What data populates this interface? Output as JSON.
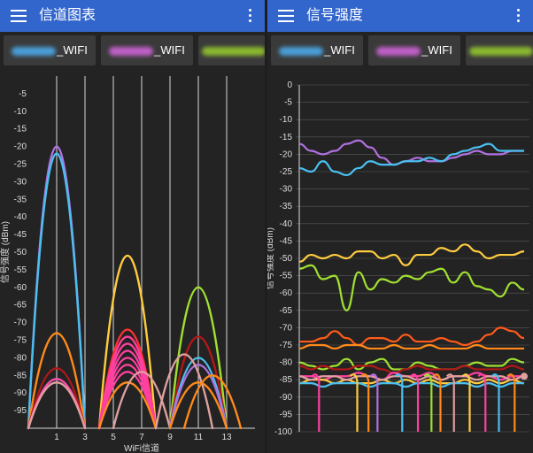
{
  "left": {
    "title": "信道图表",
    "tabs": [
      {
        "label": "_WIFI",
        "blur_color": "#4a9fd8"
      },
      {
        "label": "_WIFI",
        "blur_color": "#c060c8"
      },
      {
        "label": "",
        "blur_color": "#8ab830"
      }
    ]
  },
  "right": {
    "title": "信号强度",
    "tabs": [
      {
        "label": "_WIFI",
        "blur_color": "#4a9fd8"
      },
      {
        "label": "_WIFI",
        "blur_color": "#c060c8"
      },
      {
        "label": "",
        "blur_color": "#8ab830"
      }
    ]
  },
  "chart_data": [
    {
      "type": "area",
      "subtype": "channel-arcs",
      "xlabel": "WiFi信道",
      "ylabel": "信号强度 (dBm)",
      "ylim": [
        -100,
        0
      ],
      "xlim": [
        -1,
        15
      ],
      "yticks": [
        -5,
        -10,
        -15,
        -20,
        -25,
        -30,
        -35,
        -40,
        -45,
        -50,
        -55,
        -60,
        -65,
        -70,
        -75,
        -80,
        -85,
        -90,
        -95
      ],
      "xticks": [
        1,
        3,
        5,
        7,
        9,
        11,
        13
      ],
      "grid": true,
      "series": [
        {
          "channel": 1,
          "dbm": -20,
          "color": "#b070e0"
        },
        {
          "channel": 1,
          "dbm": -22,
          "color": "#4ac0f0"
        },
        {
          "channel": 1,
          "dbm": -73,
          "color": "#ff8a1a"
        },
        {
          "channel": 1,
          "dbm": -83,
          "color": "#b01818"
        },
        {
          "channel": 1,
          "dbm": -86,
          "color": "#ff50b0"
        },
        {
          "channel": 1,
          "dbm": -87,
          "color": "#e0a0a0"
        },
        {
          "channel": 6,
          "dbm": -51,
          "color": "#ffcc40"
        },
        {
          "channel": 6,
          "dbm": -72,
          "color": "#ff3030"
        },
        {
          "channel": 6,
          "dbm": -74,
          "color": "#ff40a0"
        },
        {
          "channel": 6,
          "dbm": -76,
          "color": "#ff40a0"
        },
        {
          "channel": 6,
          "dbm": -78,
          "color": "#ff40a0"
        },
        {
          "channel": 6,
          "dbm": -80,
          "color": "#ff40a0"
        },
        {
          "channel": 6,
          "dbm": -82,
          "color": "#ff40a0"
        },
        {
          "channel": 6,
          "dbm": -84,
          "color": "#ff40a0"
        },
        {
          "channel": 6,
          "dbm": -87,
          "color": "#ff8a1a"
        },
        {
          "channel": 7,
          "dbm": -84,
          "color": "#e0a0a0"
        },
        {
          "channel": 11,
          "dbm": -60,
          "color": "#a0e030"
        },
        {
          "channel": 11,
          "dbm": -74,
          "color": "#b01818"
        },
        {
          "channel": 11,
          "dbm": -80,
          "color": "#4ac0f0"
        },
        {
          "channel": 11,
          "dbm": -82,
          "color": "#b070e0"
        },
        {
          "channel": 11,
          "dbm": -87,
          "color": "#ff8a1a"
        },
        {
          "channel": 10,
          "dbm": -79,
          "color": "#e0a0a0"
        },
        {
          "channel": 12,
          "dbm": -85,
          "color": "#ff8a1a"
        }
      ]
    },
    {
      "type": "line",
      "ylabel": "信号强度 (dBm)",
      "ylim": [
        -100,
        0
      ],
      "yticks": [
        0,
        -5,
        -10,
        -15,
        -20,
        -25,
        -30,
        -35,
        -40,
        -45,
        -50,
        -55,
        -60,
        -65,
        -70,
        -75,
        -80,
        -85,
        -90,
        -95,
        -100
      ],
      "grid": true,
      "series": [
        {
          "color": "#b070e0",
          "values": [
            -17,
            -19,
            -20,
            -19,
            -17,
            -16,
            -18,
            -21,
            -23,
            -22,
            -21,
            -22,
            -22,
            -21,
            -20,
            -19,
            -20,
            -20,
            -19,
            -19
          ]
        },
        {
          "color": "#4ac0f0",
          "values": [
            -24,
            -25,
            -22,
            -25,
            -26,
            -24,
            -22,
            -23,
            -23,
            -22,
            -22,
            -21,
            -22,
            -20,
            -19,
            -18,
            -17,
            -19,
            -19,
            -19
          ]
        },
        {
          "color": "#ffcc40",
          "values": [
            -51,
            -49,
            -50,
            -49,
            -50,
            -48,
            -48,
            -50,
            -49,
            -52,
            -49,
            -49,
            -47,
            -48,
            -46,
            -48,
            -50,
            -49,
            -49,
            -48
          ]
        },
        {
          "color": "#a0e030",
          "values": [
            -53,
            -52,
            -56,
            -55,
            -65,
            -54,
            -59,
            -56,
            -57,
            -55,
            -56,
            -54,
            -53,
            -57,
            -54,
            -58,
            -59,
            -61,
            -57,
            -59
          ]
        },
        {
          "color": "#ff5a1a",
          "values": [
            -74,
            -74,
            -73,
            -71,
            -73,
            -75,
            -73,
            -73,
            -74,
            -72,
            -74,
            -74,
            -73,
            -74,
            -75,
            -74,
            -72,
            -70,
            -71,
            -73
          ]
        },
        {
          "color": "#ff8a1a",
          "values": [
            -76,
            -75,
            -75,
            -76,
            -75,
            -75,
            -76,
            -76,
            -75,
            -76,
            -76,
            -75,
            -76,
            -76,
            -76,
            -75,
            -76,
            -76,
            -76,
            -76
          ]
        },
        {
          "color": "#a0e030",
          "values": [
            -80,
            -81,
            -82,
            -81,
            -79,
            -82,
            -80,
            -79,
            -82,
            -82,
            -80,
            -81,
            -82,
            -82,
            -81,
            -80,
            -81,
            -81,
            -79,
            -80
          ]
        },
        {
          "color": "#b01818",
          "values": [
            -81,
            -82,
            -81,
            -82,
            -82,
            -81,
            -81,
            -82,
            -83,
            -82,
            -81,
            -82,
            -82,
            -82,
            -81,
            -82,
            -82,
            -82,
            -81,
            -82
          ]
        },
        {
          "color": "#ff40a0",
          "values": [
            -84,
            -84,
            -85,
            -84,
            -84,
            -83,
            -84,
            -85,
            -83,
            -84,
            -84,
            -83,
            -85,
            -84,
            -84,
            -83,
            -84,
            -85,
            -84,
            -84
          ]
        },
        {
          "color": "#ffcc40",
          "values": [
            -86,
            -85,
            -85,
            -86,
            -85,
            -86,
            -86,
            -85,
            -86,
            -85,
            -86,
            -85,
            -86,
            -86,
            -85,
            -86,
            -85,
            -86,
            -85,
            -86
          ]
        },
        {
          "color": "#4ac0f0",
          "values": [
            -86,
            -86,
            -87,
            -86,
            -86,
            -86,
            -87,
            -86,
            -86,
            -87,
            -86,
            -86,
            -87,
            -86,
            -86,
            -87,
            -86,
            -87,
            -86,
            -86
          ]
        },
        {
          "color": "#e0a0a0",
          "values": [
            -84,
            -85,
            -84,
            -84,
            -85,
            -84,
            -84,
            -85,
            -84,
            -84,
            -85,
            -84,
            -85,
            -84,
            -84,
            -85,
            -84,
            -84,
            -85,
            -84
          ]
        }
      ],
      "drops": [
        {
          "color": "#ff40a0",
          "at": 0.08
        },
        {
          "color": "#ffcc40",
          "at": 0.25
        },
        {
          "color": "#ff8a1a",
          "at": 0.3
        },
        {
          "color": "#b070e0",
          "at": 0.34
        },
        {
          "color": "#4ac0f0",
          "at": 0.45
        },
        {
          "color": "#ff40a0",
          "at": 0.52
        },
        {
          "color": "#a0e030",
          "at": 0.58
        },
        {
          "color": "#ff8a1a",
          "at": 0.62
        },
        {
          "color": "#e0a0a0",
          "at": 0.68
        },
        {
          "color": "#ffcc40",
          "at": 0.75
        },
        {
          "color": "#ff40a0",
          "at": 0.82
        },
        {
          "color": "#4ac0f0",
          "at": 0.88
        },
        {
          "color": "#ff8a1a",
          "at": 0.95
        }
      ]
    }
  ]
}
